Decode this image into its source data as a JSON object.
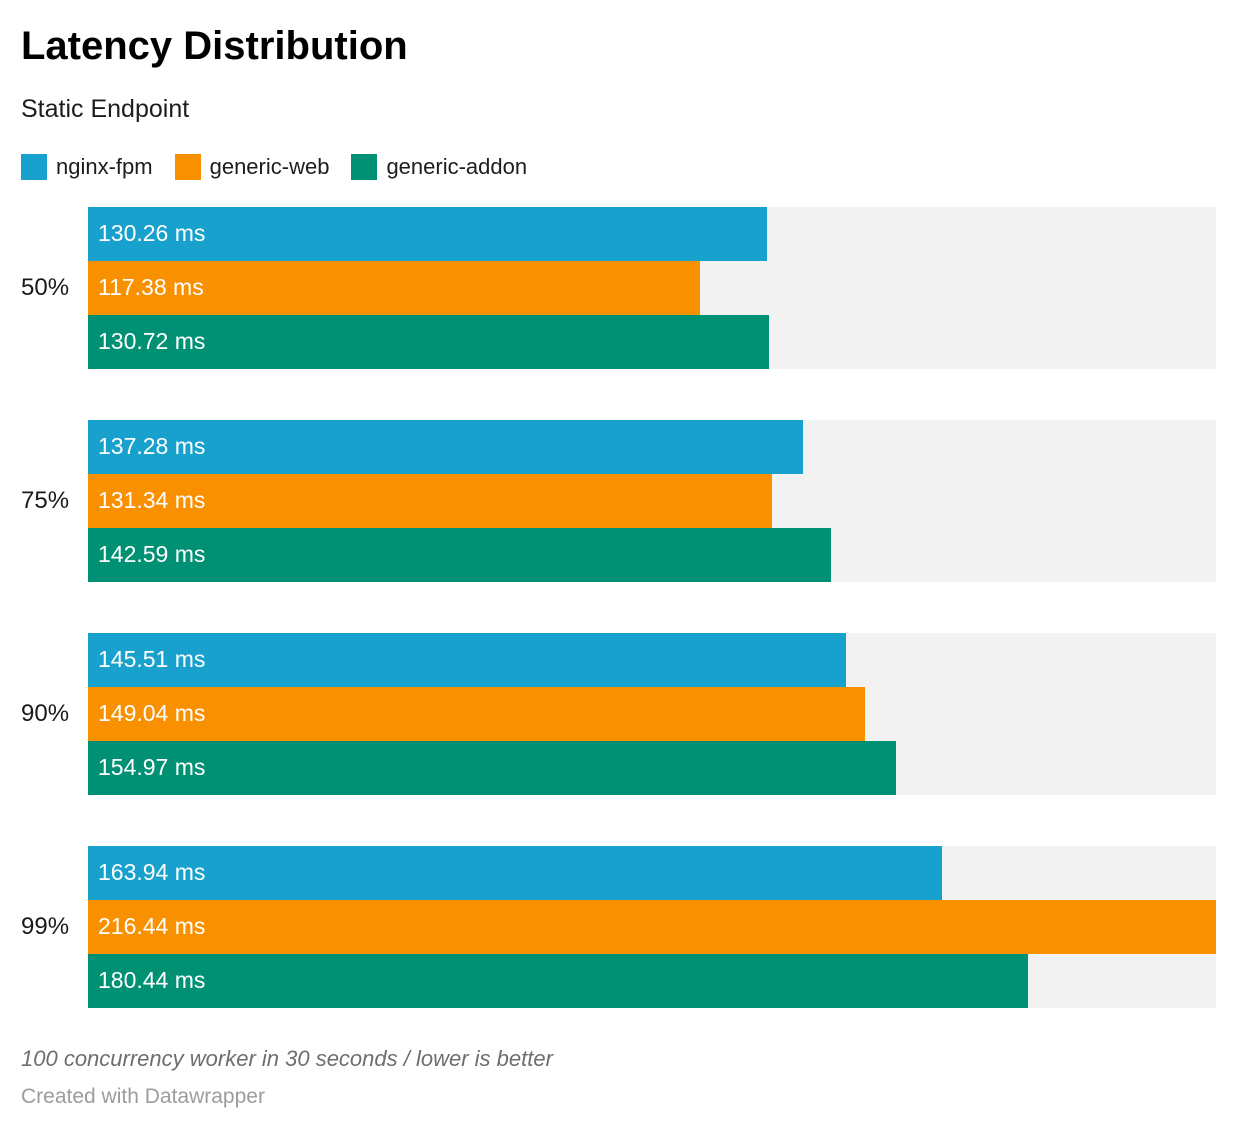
{
  "header": {
    "title": "Latency Distribution",
    "subtitle": "Static Endpoint"
  },
  "chart_data": {
    "type": "bar",
    "orientation": "horizontal",
    "title": "Latency Distribution",
    "subtitle": "Static Endpoint",
    "categories": [
      "50%",
      "75%",
      "90%",
      "99%"
    ],
    "series": [
      {
        "name": "nginx-fpm",
        "color": "#18a1cd",
        "values": [
          130.26,
          137.28,
          145.51,
          163.94
        ]
      },
      {
        "name": "generic-web",
        "color": "#f89000",
        "values": [
          117.38,
          131.34,
          149.04,
          216.44
        ]
      },
      {
        "name": "generic-addon",
        "color": "#009074",
        "values": [
          130.72,
          142.59,
          154.97,
          180.44
        ]
      }
    ],
    "value_suffix": " ms",
    "value_decimals": 2,
    "xlim": [
      0,
      216.44
    ],
    "track_color": "#f2f2f2",
    "grid": false,
    "legend_position": "top",
    "bar_labels": "inside-start"
  },
  "footer": {
    "note": "100 concurrency worker in 30 seconds / lower is better",
    "credit": "Created with Datawrapper"
  }
}
